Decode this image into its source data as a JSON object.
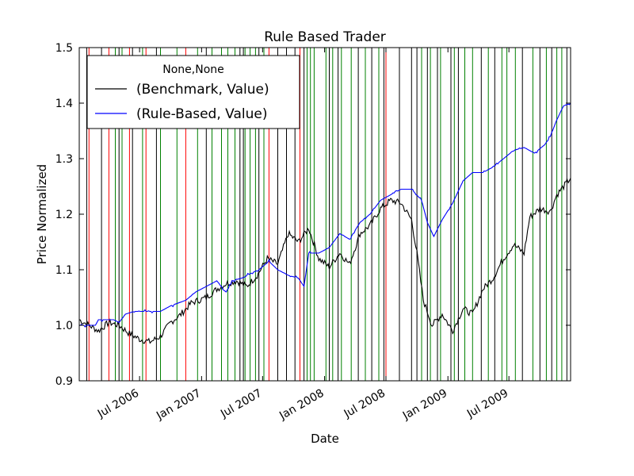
{
  "chart_data": {
    "type": "line",
    "title": "Rule Based Trader",
    "xlabel": "Date",
    "ylabel": "Price Normalized",
    "xlim": [
      "2006-01-03",
      "2009-12-31"
    ],
    "ylim": [
      0.9,
      1.5
    ],
    "yticks": [
      "0.9",
      "1.0",
      "1.1",
      "1.2",
      "1.3",
      "1.4",
      "1.5"
    ],
    "xticks": [
      {
        "date": "2006-07-01",
        "label": "Jul 2006"
      },
      {
        "date": "2007-01-01",
        "label": "Jan 2007"
      },
      {
        "date": "2007-07-01",
        "label": "Jul 2007"
      },
      {
        "date": "2008-01-01",
        "label": "Jan 2008"
      },
      {
        "date": "2008-07-01",
        "label": "Jul 2008"
      },
      {
        "date": "2009-01-01",
        "label": "Jan 2009"
      },
      {
        "date": "2009-07-01",
        "label": "Jul 2009"
      }
    ],
    "grid": false,
    "legend": {
      "placement": "top-left",
      "title": "None,None",
      "entries": [
        "(Benchmark, Value)",
        "(Rule-Based, Value)"
      ]
    },
    "series": [
      {
        "name": "(Benchmark, Value)",
        "color": "#000000",
        "points": [
          [
            "2006-01-03",
            1.01
          ],
          [
            "2006-02-01",
            1.0
          ],
          [
            "2006-03-01",
            0.99
          ],
          [
            "2006-04-01",
            1.005
          ],
          [
            "2006-05-01",
            1.0
          ],
          [
            "2006-06-01",
            0.985
          ],
          [
            "2006-07-01",
            0.975
          ],
          [
            "2006-08-01",
            0.97
          ],
          [
            "2006-09-01",
            0.98
          ],
          [
            "2006-10-01",
            1.005
          ],
          [
            "2006-11-01",
            1.02
          ],
          [
            "2006-12-01",
            1.04
          ],
          [
            "2007-01-15",
            1.05
          ],
          [
            "2007-02-15",
            1.065
          ],
          [
            "2007-03-15",
            1.075
          ],
          [
            "2007-04-15",
            1.08
          ],
          [
            "2007-05-15",
            1.07
          ],
          [
            "2007-06-15",
            1.09
          ],
          [
            "2007-07-15",
            1.12
          ],
          [
            "2007-08-15",
            1.11
          ],
          [
            "2007-09-15",
            1.165
          ],
          [
            "2007-10-15",
            1.15
          ],
          [
            "2007-11-15",
            1.175
          ],
          [
            "2007-12-15",
            1.12
          ],
          [
            "2008-01-15",
            1.105
          ],
          [
            "2008-02-15",
            1.13
          ],
          [
            "2008-03-15",
            1.11
          ],
          [
            "2008-04-15",
            1.165
          ],
          [
            "2008-05-15",
            1.18
          ],
          [
            "2008-06-15",
            1.21
          ],
          [
            "2008-07-15",
            1.225
          ],
          [
            "2008-08-15",
            1.22
          ],
          [
            "2008-09-15",
            1.19
          ],
          [
            "2008-10-01",
            1.13
          ],
          [
            "2008-10-20",
            1.045
          ],
          [
            "2008-11-15",
            1.0
          ],
          [
            "2008-12-15",
            1.02
          ],
          [
            "2009-01-15",
            0.99
          ],
          [
            "2009-02-15",
            1.03
          ],
          [
            "2009-03-15",
            1.02
          ],
          [
            "2009-04-15",
            1.065
          ],
          [
            "2009-05-15",
            1.085
          ],
          [
            "2009-06-15",
            1.12
          ],
          [
            "2009-07-15",
            1.145
          ],
          [
            "2009-08-15",
            1.13
          ],
          [
            "2009-09-01",
            1.195
          ],
          [
            "2009-10-01",
            1.21
          ],
          [
            "2009-11-01",
            1.205
          ],
          [
            "2009-11-20",
            1.235
          ],
          [
            "2009-12-31",
            1.265
          ]
        ]
      },
      {
        "name": "(Rule-Based, Value)",
        "color": "#0000ff",
        "points": [
          [
            "2006-01-03",
            1.0
          ],
          [
            "2006-02-20",
            1.0
          ],
          [
            "2006-03-01",
            1.01
          ],
          [
            "2006-04-15",
            1.01
          ],
          [
            "2006-05-01",
            1.005
          ],
          [
            "2006-05-20",
            1.02
          ],
          [
            "2006-06-15",
            1.025
          ],
          [
            "2006-09-01",
            1.025
          ],
          [
            "2006-10-01",
            1.035
          ],
          [
            "2006-11-15",
            1.045
          ],
          [
            "2006-12-15",
            1.06
          ],
          [
            "2007-01-15",
            1.07
          ],
          [
            "2007-02-15",
            1.08
          ],
          [
            "2007-03-15",
            1.06
          ],
          [
            "2007-04-01",
            1.08
          ],
          [
            "2007-05-01",
            1.085
          ],
          [
            "2007-06-01",
            1.095
          ],
          [
            "2007-06-20",
            1.1
          ],
          [
            "2007-07-20",
            1.115
          ],
          [
            "2007-08-15",
            1.1
          ],
          [
            "2007-09-15",
            1.09
          ],
          [
            "2007-10-15",
            1.085
          ],
          [
            "2007-11-01",
            1.07
          ],
          [
            "2007-11-15",
            1.13
          ],
          [
            "2007-12-15",
            1.13
          ],
          [
            "2008-01-15",
            1.14
          ],
          [
            "2008-02-15",
            1.165
          ],
          [
            "2008-03-15",
            1.155
          ],
          [
            "2008-04-15",
            1.185
          ],
          [
            "2008-05-15",
            1.2
          ],
          [
            "2008-06-15",
            1.225
          ],
          [
            "2008-07-15",
            1.235
          ],
          [
            "2008-08-15",
            1.245
          ],
          [
            "2008-09-15",
            1.245
          ],
          [
            "2008-10-15",
            1.225
          ],
          [
            "2008-11-01",
            1.185
          ],
          [
            "2008-11-20",
            1.16
          ],
          [
            "2008-12-15",
            1.19
          ],
          [
            "2009-01-15",
            1.22
          ],
          [
            "2009-02-15",
            1.26
          ],
          [
            "2009-03-15",
            1.275
          ],
          [
            "2009-04-15",
            1.275
          ],
          [
            "2009-05-15",
            1.285
          ],
          [
            "2009-06-15",
            1.3
          ],
          [
            "2009-07-15",
            1.315
          ],
          [
            "2009-08-15",
            1.32
          ],
          [
            "2009-09-15",
            1.31
          ],
          [
            "2009-10-15",
            1.325
          ],
          [
            "2009-11-01",
            1.34
          ],
          [
            "2009-11-20",
            1.37
          ],
          [
            "2009-12-10",
            1.395
          ],
          [
            "2009-12-31",
            1.4
          ]
        ]
      }
    ],
    "signal_lines": {
      "buy_color": "#008000",
      "sell_color": "#ff0000",
      "exit_color": "#000000",
      "buy": [
        "2006-04-20",
        "2006-05-10",
        "2006-07-10",
        "2006-09-01",
        "2006-10-20",
        "2006-12-20",
        "2007-02-01",
        "2007-03-01",
        "2007-03-20",
        "2007-04-10",
        "2007-05-10",
        "2007-05-25",
        "2007-06-10",
        "2007-07-05",
        "2007-11-10",
        "2007-11-20",
        "2007-12-01",
        "2008-01-05",
        "2008-01-25",
        "2008-02-20",
        "2008-03-20",
        "2008-05-01",
        "2008-06-10",
        "2008-10-15",
        "2008-11-10",
        "2008-12-10",
        "2009-01-20",
        "2009-02-20",
        "2009-03-15",
        "2009-05-01",
        "2009-06-10",
        "2009-06-25",
        "2009-07-20",
        "2009-09-10",
        "2009-10-20",
        "2009-11-20",
        "2009-12-05"
      ],
      "sell": [
        "2006-02-01",
        "2006-04-01",
        "2006-06-01",
        "2006-07-20",
        "2006-11-15",
        "2007-07-20",
        "2007-10-20",
        "2008-07-01"
      ],
      "exit": [
        "2006-01-25",
        "2006-03-10",
        "2006-05-01",
        "2006-06-10",
        "2006-08-20",
        "2007-01-15",
        "2007-04-25",
        "2007-05-05",
        "2007-06-20",
        "2007-08-15",
        "2007-09-10",
        "2007-10-05",
        "2007-11-01",
        "2008-01-15",
        "2008-02-10",
        "2008-04-10",
        "2008-05-20",
        "2008-06-25",
        "2008-08-10",
        "2008-09-15",
        "2008-10-01",
        "2008-11-01",
        "2008-12-01",
        "2009-01-10",
        "2009-02-01",
        "2009-04-10",
        "2009-05-20",
        "2009-08-10",
        "2009-10-01",
        "2009-11-05",
        "2009-12-20"
      ]
    }
  }
}
